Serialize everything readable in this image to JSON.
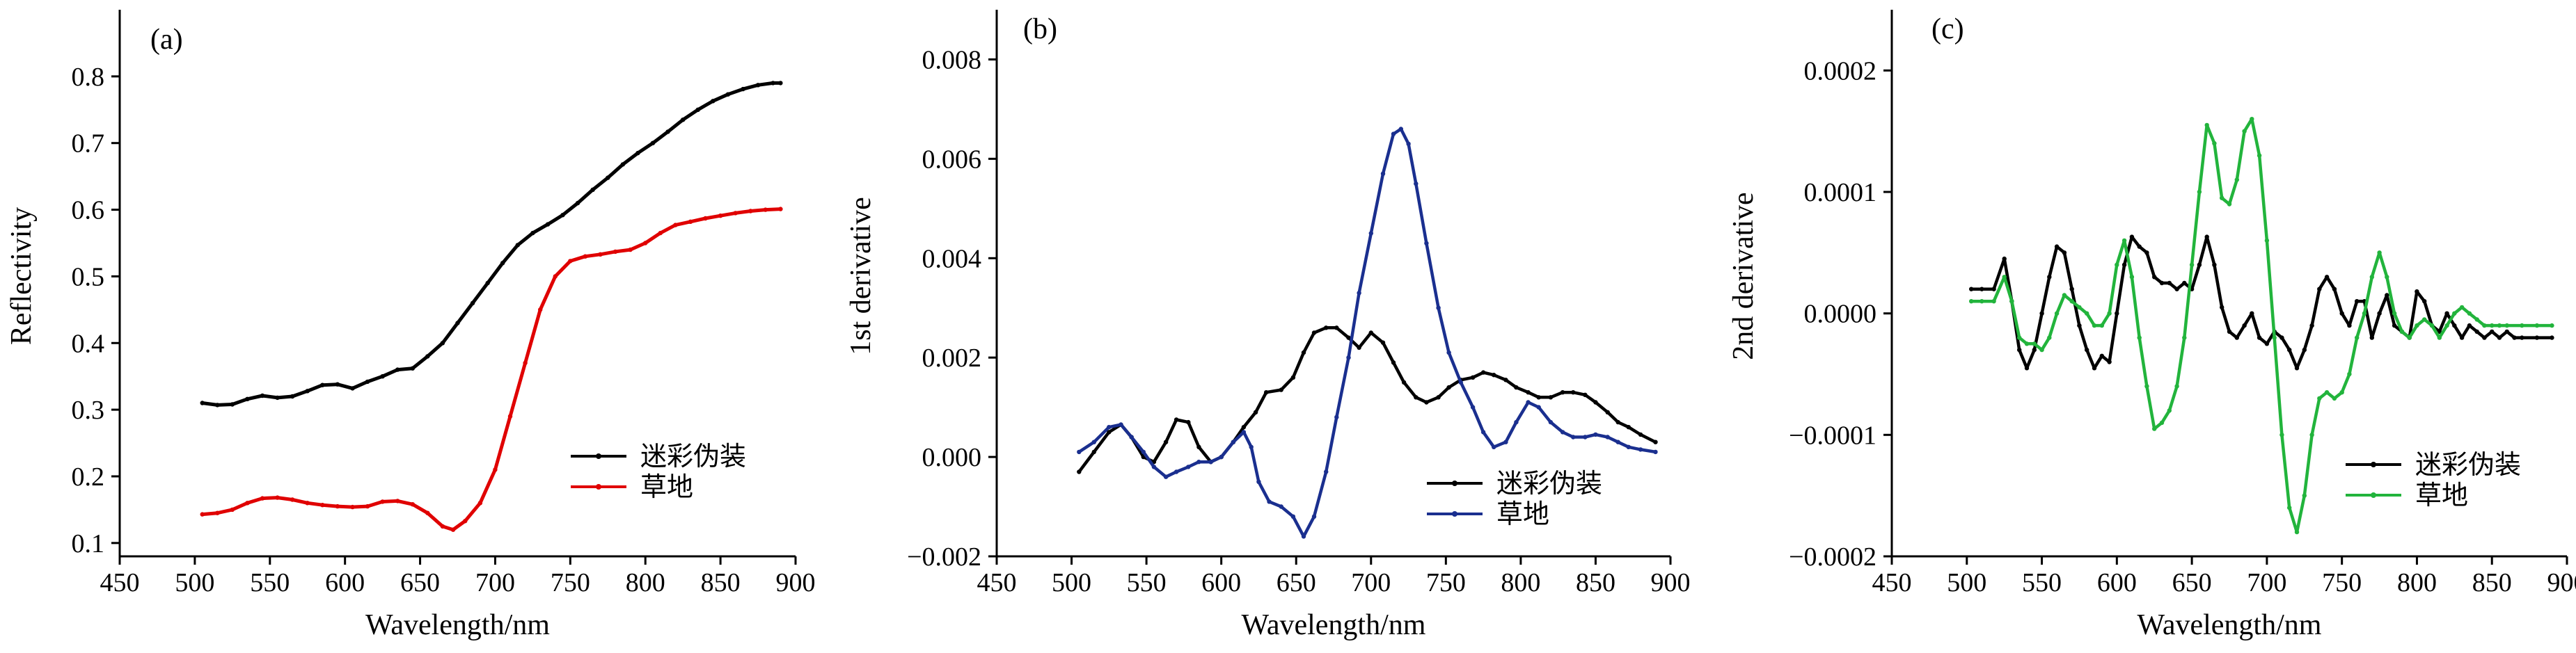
{
  "chart_data": [
    {
      "type": "line",
      "panel_label": "(a)",
      "xlabel": "Wavelength/nm",
      "ylabel": "Reflectivity",
      "xlim": [
        450,
        900
      ],
      "ylim": [
        0.08,
        0.9
      ],
      "xticks": [
        450,
        500,
        550,
        600,
        650,
        700,
        750,
        800,
        850,
        900
      ],
      "yticks": [
        0.1,
        0.2,
        0.3,
        0.4,
        0.5,
        0.6,
        0.7,
        0.8
      ],
      "ytick_labels": [
        "0.1",
        "0.2",
        "0.3",
        "0.4",
        "0.5",
        "0.6",
        "0.7",
        "0.8"
      ],
      "legend_position": "lower-right",
      "series": [
        {
          "name": "迷彩伪装",
          "color": "#000000",
          "x": [
            505,
            515,
            525,
            535,
            545,
            555,
            565,
            575,
            585,
            595,
            605,
            615,
            625,
            635,
            645,
            655,
            665,
            675,
            685,
            695,
            705,
            715,
            725,
            735,
            745,
            755,
            765,
            775,
            785,
            795,
            805,
            815,
            825,
            835,
            845,
            855,
            865,
            875,
            885,
            890
          ],
          "y": [
            0.31,
            0.307,
            0.308,
            0.316,
            0.321,
            0.318,
            0.32,
            0.328,
            0.337,
            0.338,
            0.332,
            0.342,
            0.35,
            0.36,
            0.362,
            0.38,
            0.4,
            0.43,
            0.46,
            0.49,
            0.52,
            0.547,
            0.565,
            0.578,
            0.592,
            0.61,
            0.63,
            0.648,
            0.668,
            0.685,
            0.7,
            0.717,
            0.735,
            0.75,
            0.763,
            0.773,
            0.781,
            0.787,
            0.79,
            0.79
          ]
        },
        {
          "name": "草地",
          "color": "#e00000",
          "x": [
            505,
            515,
            525,
            535,
            545,
            555,
            565,
            575,
            585,
            595,
            605,
            615,
            625,
            635,
            645,
            655,
            665,
            672,
            680,
            690,
            700,
            710,
            720,
            730,
            740,
            750,
            760,
            770,
            780,
            790,
            800,
            810,
            820,
            830,
            840,
            850,
            860,
            870,
            880,
            890
          ],
          "y": [
            0.143,
            0.145,
            0.15,
            0.16,
            0.167,
            0.168,
            0.165,
            0.16,
            0.157,
            0.155,
            0.154,
            0.155,
            0.162,
            0.163,
            0.158,
            0.145,
            0.125,
            0.12,
            0.133,
            0.16,
            0.21,
            0.29,
            0.37,
            0.45,
            0.5,
            0.523,
            0.53,
            0.533,
            0.537,
            0.54,
            0.55,
            0.565,
            0.577,
            0.582,
            0.587,
            0.591,
            0.595,
            0.598,
            0.6,
            0.601
          ]
        }
      ]
    },
    {
      "type": "line",
      "panel_label": "(b)",
      "xlabel": "Wavelength/nm",
      "ylabel": "1st derivative",
      "xlim": [
        450,
        900
      ],
      "ylim": [
        -0.002,
        0.009
      ],
      "xticks": [
        450,
        500,
        550,
        600,
        650,
        700,
        750,
        800,
        850,
        900
      ],
      "yticks": [
        -0.002,
        0.0,
        0.002,
        0.004,
        0.006,
        0.008
      ],
      "ytick_labels": [
        "−0.002",
        "0.000",
        "0.002",
        "0.004",
        "0.006",
        "0.008"
      ],
      "legend_position": "lower-right",
      "series": [
        {
          "name": "迷彩伪装",
          "color": "#000000",
          "x": [
            505,
            515,
            525,
            533,
            540,
            548,
            555,
            563,
            570,
            578,
            585,
            593,
            600,
            608,
            615,
            623,
            630,
            640,
            648,
            655,
            662,
            670,
            677,
            685,
            692,
            700,
            708,
            715,
            722,
            730,
            737,
            745,
            752,
            760,
            768,
            775,
            782,
            790,
            797,
            805,
            812,
            820,
            828,
            835,
            843,
            850,
            858,
            865,
            872,
            880,
            890
          ],
          "y": [
            -0.0003,
            0.0001,
            0.0005,
            0.00065,
            0.0004,
            0.0,
            -0.0001,
            0.0003,
            0.00075,
            0.0007,
            0.0002,
            -0.0001,
            0.0,
            0.0003,
            0.0006,
            0.0009,
            0.0013,
            0.00135,
            0.0016,
            0.0021,
            0.0025,
            0.0026,
            0.0026,
            0.0024,
            0.0022,
            0.0025,
            0.0023,
            0.0019,
            0.0015,
            0.0012,
            0.0011,
            0.0012,
            0.0014,
            0.00155,
            0.0016,
            0.0017,
            0.00165,
            0.00155,
            0.0014,
            0.0013,
            0.0012,
            0.0012,
            0.0013,
            0.0013,
            0.00125,
            0.0011,
            0.0009,
            0.0007,
            0.0006,
            0.00045,
            0.0003
          ]
        },
        {
          "name": "草地",
          "color": "#1a2f8f",
          "x": [
            505,
            515,
            525,
            533,
            540,
            548,
            555,
            563,
            570,
            578,
            585,
            593,
            600,
            608,
            615,
            620,
            625,
            632,
            640,
            648,
            655,
            662,
            670,
            677,
            685,
            692,
            700,
            708,
            715,
            720,
            725,
            730,
            737,
            745,
            752,
            760,
            768,
            775,
            782,
            790,
            797,
            805,
            812,
            820,
            828,
            835,
            843,
            850,
            858,
            865,
            872,
            880,
            890
          ],
          "y": [
            0.0001,
            0.0003,
            0.0006,
            0.00065,
            0.0004,
            0.0001,
            -0.0002,
            -0.0004,
            -0.0003,
            -0.0002,
            -0.0001,
            -0.0001,
            0.0,
            0.0003,
            0.0005,
            0.0002,
            -0.0005,
            -0.0009,
            -0.001,
            -0.0012,
            -0.0016,
            -0.0012,
            -0.0003,
            0.0008,
            0.002,
            0.0033,
            0.0045,
            0.0057,
            0.0065,
            0.0066,
            0.0063,
            0.0055,
            0.0043,
            0.003,
            0.0021,
            0.0015,
            0.001,
            0.0005,
            0.0002,
            0.0003,
            0.0007,
            0.0011,
            0.001,
            0.0007,
            0.0005,
            0.0004,
            0.0004,
            0.00045,
            0.0004,
            0.0003,
            0.0002,
            0.00015,
            0.0001
          ]
        }
      ]
    },
    {
      "type": "line",
      "panel_label": "(c)",
      "xlabel": "Wavelength/nm",
      "ylabel": "2nd derivative",
      "xlim": [
        450,
        900
      ],
      "ylim": [
        -0.0002,
        0.00025
      ],
      "xticks": [
        450,
        500,
        550,
        600,
        650,
        700,
        750,
        800,
        850,
        900
      ],
      "yticks": [
        -0.0002,
        -0.0001,
        0.0,
        0.0001,
        0.0002
      ],
      "ytick_labels": [
        "−0.0002",
        "−0.0001",
        "0.0000",
        "0.0001",
        "0.0002"
      ],
      "legend_position": "lower-right",
      "series": [
        {
          "name": "迷彩伪装",
          "color": "#000000",
          "x": [
            503,
            510,
            518,
            525,
            530,
            535,
            540,
            545,
            550,
            555,
            560,
            565,
            570,
            575,
            580,
            585,
            590,
            595,
            600,
            605,
            610,
            615,
            620,
            625,
            630,
            635,
            640,
            645,
            650,
            655,
            660,
            665,
            670,
            675,
            680,
            685,
            690,
            695,
            700,
            705,
            710,
            715,
            720,
            725,
            730,
            735,
            740,
            745,
            750,
            755,
            760,
            765,
            770,
            775,
            780,
            785,
            790,
            795,
            800,
            805,
            810,
            815,
            820,
            825,
            830,
            835,
            840,
            845,
            850,
            855,
            860,
            865,
            870,
            880,
            890
          ],
          "y": [
            2e-05,
            2e-05,
            2e-05,
            4.5e-05,
            1e-05,
            -3e-05,
            -4.5e-05,
            -3e-05,
            0.0,
            3e-05,
            5.5e-05,
            5e-05,
            2e-05,
            -1e-05,
            -3e-05,
            -4.5e-05,
            -3.5e-05,
            -4e-05,
            0.0,
            4e-05,
            6.3e-05,
            5.5e-05,
            5e-05,
            3e-05,
            2.5e-05,
            2.5e-05,
            2e-05,
            2.5e-05,
            2e-05,
            4e-05,
            6.3e-05,
            4e-05,
            5e-06,
            -1.5e-05,
            -2e-05,
            -1e-05,
            0.0,
            -2e-05,
            -2.5e-05,
            -1.5e-05,
            -2e-05,
            -3e-05,
            -4.5e-05,
            -3e-05,
            -1e-05,
            2e-05,
            3e-05,
            2e-05,
            0.0,
            -1e-05,
            1e-05,
            1e-05,
            -2e-05,
            0.0,
            1.5e-05,
            -1e-05,
            -1.5e-05,
            -2e-05,
            1.8e-05,
            1e-05,
            -1e-05,
            -1.5e-05,
            0.0,
            -1e-05,
            -2e-05,
            -1e-05,
            -1.5e-05,
            -2e-05,
            -1.5e-05,
            -2e-05,
            -1.5e-05,
            -2e-05,
            -2e-05,
            -2e-05,
            -2e-05
          ]
        },
        {
          "name": "草地",
          "color": "#22b43c",
          "x": [
            503,
            510,
            518,
            525,
            530,
            535,
            540,
            545,
            550,
            555,
            560,
            565,
            570,
            575,
            580,
            585,
            590,
            595,
            600,
            605,
            610,
            615,
            620,
            625,
            630,
            635,
            640,
            645,
            650,
            655,
            660,
            665,
            670,
            675,
            680,
            685,
            690,
            695,
            700,
            705,
            710,
            715,
            720,
            725,
            730,
            735,
            740,
            745,
            750,
            755,
            760,
            765,
            770,
            775,
            780,
            785,
            790,
            795,
            800,
            805,
            810,
            815,
            820,
            825,
            830,
            835,
            840,
            845,
            850,
            855,
            860,
            870,
            880,
            890
          ],
          "y": [
            1e-05,
            1e-05,
            1e-05,
            3e-05,
            1e-05,
            -2e-05,
            -2.5e-05,
            -2.5e-05,
            -3e-05,
            -2e-05,
            0.0,
            1.5e-05,
            1e-05,
            5e-06,
            0.0,
            -1e-05,
            -1e-05,
            0.0,
            4e-05,
            6e-05,
            3e-05,
            -2e-05,
            -6e-05,
            -9.5e-05,
            -9e-05,
            -8e-05,
            -6e-05,
            -2e-05,
            4e-05,
            0.0001,
            0.000155,
            0.00014,
            9.5e-05,
            9e-05,
            0.00011,
            0.00015,
            0.00016,
            0.00013,
            6e-05,
            -2e-05,
            -0.0001,
            -0.00016,
            -0.00018,
            -0.00015,
            -0.0001,
            -7e-05,
            -6.5e-05,
            -7e-05,
            -6.5e-05,
            -5e-05,
            -2e-05,
            0.0,
            3e-05,
            5e-05,
            3e-05,
            0.0,
            -1.5e-05,
            -2e-05,
            -1e-05,
            -5e-06,
            -1e-05,
            -2e-05,
            -1e-05,
            0.0,
            5e-06,
            0.0,
            -5e-06,
            -1e-05,
            -1e-05,
            -1e-05,
            -1e-05,
            -1e-05,
            -1e-05,
            -1e-05
          ]
        }
      ]
    }
  ]
}
